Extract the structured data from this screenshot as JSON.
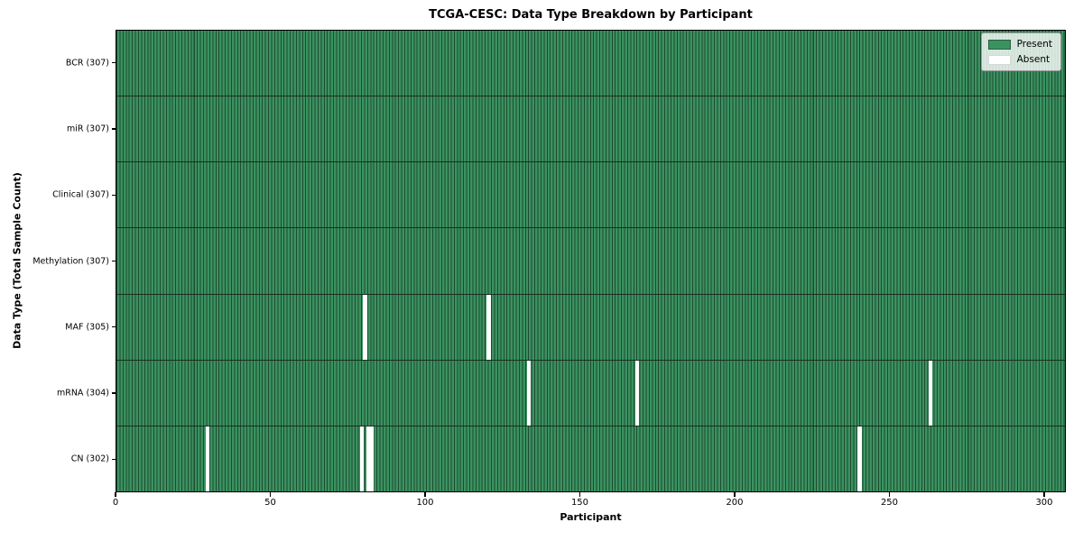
{
  "figure": {
    "title": "TCGA-CESC: Data Type Breakdown by Participant",
    "xlabel": "Participant",
    "ylabel": "Data Type (Total Sample Count)"
  },
  "legend": {
    "items": [
      {
        "label": "Present",
        "color": "#3b9261"
      },
      {
        "label": "Absent",
        "color": "#ffffff"
      }
    ]
  },
  "colors": {
    "present_fill": "#3b9261",
    "cell_edge": "#1d4b30",
    "row_separator": "#17301f",
    "absent_fill": "#ffffff",
    "spine": "#000000"
  },
  "chart_data": {
    "type": "heatmap",
    "title": "TCGA-CESC: Data Type Breakdown by Participant",
    "xlabel": "Participant",
    "ylabel": "Data Type (Total Sample Count)",
    "x_range": [
      0,
      307
    ],
    "x_ticks": [
      0,
      50,
      100,
      150,
      200,
      250,
      300
    ],
    "n_participants": 307,
    "grid": false,
    "legend_position": "upper right",
    "legend": [
      {
        "label": "Present",
        "color": "#3b9261"
      },
      {
        "label": "Absent",
        "color": "#ffffff"
      }
    ],
    "rows": [
      {
        "name": "BCR",
        "label": "BCR (307)",
        "present_count": 307,
        "absent_participants": []
      },
      {
        "name": "miR",
        "label": "miR (307)",
        "present_count": 307,
        "absent_participants": []
      },
      {
        "name": "Clinical",
        "label": "Clinical (307)",
        "present_count": 307,
        "absent_participants": []
      },
      {
        "name": "Methylation",
        "label": "Methylation (307)",
        "present_count": 307,
        "absent_participants": []
      },
      {
        "name": "MAF",
        "label": "MAF (305)",
        "present_count": 305,
        "absent_participants": [
          80,
          120
        ]
      },
      {
        "name": "mRNA",
        "label": "mRNA (304)",
        "present_count": 304,
        "absent_participants": [
          133,
          168,
          263
        ]
      },
      {
        "name": "CN",
        "label": "CN (302)",
        "present_count": 302,
        "absent_participants": [
          29,
          79,
          81,
          82,
          240
        ]
      }
    ]
  }
}
